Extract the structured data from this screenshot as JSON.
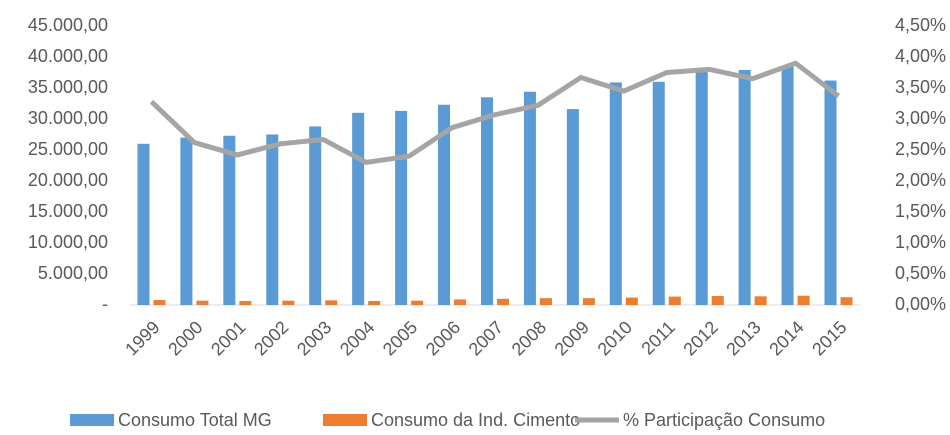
{
  "chart_data": {
    "type": "bar_line",
    "categories": [
      "1999",
      "2000",
      "2001",
      "2002",
      "2003",
      "2004",
      "2005",
      "2006",
      "2007",
      "2008",
      "2009",
      "2010",
      "2011",
      "2012",
      "2013",
      "2014",
      "2015"
    ],
    "series": [
      {
        "name": "Consumo Total MG",
        "color": "#5b9bd5",
        "type": "bar",
        "values": [
          26000,
          27000,
          27300,
          27500,
          28800,
          31000,
          31300,
          32300,
          33500,
          34400,
          31600,
          35900,
          36000,
          38000,
          37900,
          38600,
          36200
        ]
      },
      {
        "name": "Consumo da Ind. Cimento",
        "color": "#ed7d31",
        "type": "bar",
        "values": [
          800,
          700,
          650,
          700,
          750,
          650,
          700,
          900,
          1000,
          1100,
          1100,
          1200,
          1350,
          1450,
          1400,
          1500,
          1250
        ]
      },
      {
        "name": "% Participação Consumo",
        "color": "#a5a5a5",
        "type": "line",
        "axis": "y2",
        "values": [
          3.28,
          2.62,
          2.42,
          2.6,
          2.67,
          2.3,
          2.4,
          2.86,
          3.07,
          3.22,
          3.67,
          3.45,
          3.75,
          3.8,
          3.65,
          3.9,
          3.37
        ]
      }
    ],
    "ylim": [
      0,
      45000
    ],
    "yticks": [
      {
        "value": 0,
        "label": "-"
      },
      {
        "value": 5000,
        "label": "5.000,00"
      },
      {
        "value": 10000,
        "label": "10.000,00"
      },
      {
        "value": 15000,
        "label": "15.000,00"
      },
      {
        "value": 20000,
        "label": "20.000,00"
      },
      {
        "value": 25000,
        "label": "25.000,00"
      },
      {
        "value": 30000,
        "label": "30.000,00"
      },
      {
        "value": 35000,
        "label": "35.000,00"
      },
      {
        "value": 40000,
        "label": "40.000,00"
      },
      {
        "value": 45000,
        "label": "45.000,00"
      }
    ],
    "y2lim": [
      0,
      4.5
    ],
    "y2ticks": [
      {
        "value": 0,
        "label": "0,00%"
      },
      {
        "value": 0.5,
        "label": "0,50%"
      },
      {
        "value": 1,
        "label": "1,00%"
      },
      {
        "value": 1.5,
        "label": "1,50%"
      },
      {
        "value": 2,
        "label": "2,00%"
      },
      {
        "value": 2.5,
        "label": "2,50%"
      },
      {
        "value": 3,
        "label": "3,00%"
      },
      {
        "value": 3.5,
        "label": "3,50%"
      },
      {
        "value": 4,
        "label": "4,00%"
      },
      {
        "value": 4.5,
        "label": "4,50%"
      }
    ],
    "legend": "bottom"
  }
}
